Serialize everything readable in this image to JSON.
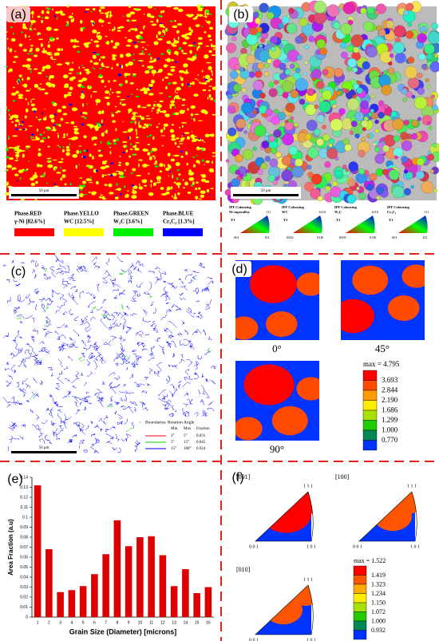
{
  "panels": {
    "a": {
      "label": "(a)",
      "scale_bar": "50 μm",
      "legend": [
        {
          "name": "Phase.RED",
          "detail": "γ-Ni [82.6%]",
          "color": "#ff0000"
        },
        {
          "name": "Phase.YELLO",
          "detail": "WC [12.5%]",
          "color": "#ffff00"
        },
        {
          "name": "Phase.GREEN",
          "detail": "W₂C [3.6%]",
          "color": "#00ee00"
        },
        {
          "name": "Phase.BLUE",
          "detail": "Cr₃C₂ [1.3%]",
          "color": "#0000ff"
        }
      ]
    },
    "b": {
      "label": "(b)",
      "scale_bar": "50 μm",
      "ipf_keys": [
        {
          "title": "IPF Colouring",
          "phase": "Ni-superalloy",
          "axis": "Y1",
          "corners": [
            "001",
            "101",
            "111"
          ]
        },
        {
          "title": "IPF Colouring",
          "phase": "WC",
          "axis": "Y1",
          "corners": [
            "0001",
            "01I0",
            "1210"
          ]
        },
        {
          "title": "IPF Colouring",
          "phase": "W₂C",
          "axis": "Y1",
          "corners": [
            "0001",
            "01I0",
            "1210"
          ]
        },
        {
          "title": "IPF Colouring",
          "phase": "Cr₃C₂",
          "axis": "Y1",
          "corners": [
            "001",
            "101",
            "111"
          ]
        }
      ]
    },
    "c": {
      "label": "(c)",
      "scale_bar": "50 μm",
      "table": {
        "title": "Boundaries: Rotation Angle",
        "header": [
          "Min",
          "Max",
          "Fraction"
        ],
        "rows": [
          [
            "2°",
            "5°",
            "0.031"
          ],
          [
            "5°",
            "15°",
            "0.045"
          ],
          [
            "15°",
            "180°",
            "0.924"
          ]
        ],
        "colors": [
          "#ff0000",
          "#00cc00",
          "#0000ff"
        ]
      }
    },
    "d": {
      "label": "(d)",
      "angles": [
        "0°",
        "45°",
        "90°"
      ],
      "max": "max = 4.795",
      "levels": [
        "3.693",
        "2.844",
        "2.190",
        "1.686",
        "1.299",
        "1.000",
        "0.770"
      ],
      "colors": [
        "#ff0000",
        "#ff4a00",
        "#ff9900",
        "#ffee00",
        "#a8e000",
        "#22cc00",
        "#008855",
        "#0033ff"
      ]
    },
    "e": {
      "label": "(e)",
      "chart_data": {
        "type": "bar",
        "x_label": "Grain Size (Diameter) [microns]",
        "y_label": "Area Fraction (a.u)",
        "categories": [
          "1",
          "2",
          "3",
          "4",
          "5",
          "6",
          "7",
          "8",
          "9",
          "10",
          "11",
          "12",
          "13",
          "14",
          "15",
          "16"
        ],
        "values": [
          0.132,
          0.068,
          0.025,
          0.027,
          0.031,
          0.043,
          0.063,
          0.097,
          0.071,
          0.08,
          0.081,
          0.062,
          0.031,
          0.048,
          0.024,
          0.03
        ],
        "color": "#dd0000",
        "ylim": [
          0,
          0.14
        ],
        "yticks": [
          0,
          0.01,
          0.02,
          0.03,
          0.04,
          0.05,
          0.06,
          0.07,
          0.08,
          0.09,
          0.1,
          0.11,
          0.12,
          0.13,
          0.14
        ]
      }
    },
    "f": {
      "label": "(f)",
      "directions": [
        "[001]",
        "[100]",
        "[010]"
      ],
      "corners": [
        "1 1 1",
        "0 0 1",
        "1 0 1"
      ],
      "max": "max = 1.522",
      "levels": [
        "1.419",
        "1.323",
        "1.234",
        "1.150",
        "1.072",
        "1.000",
        "0.932"
      ],
      "colors": [
        "#ff0000",
        "#ff5500",
        "#ffaa00",
        "#ffee00",
        "#a8e000",
        "#22cc00",
        "#008855",
        "#0033ff"
      ]
    }
  }
}
